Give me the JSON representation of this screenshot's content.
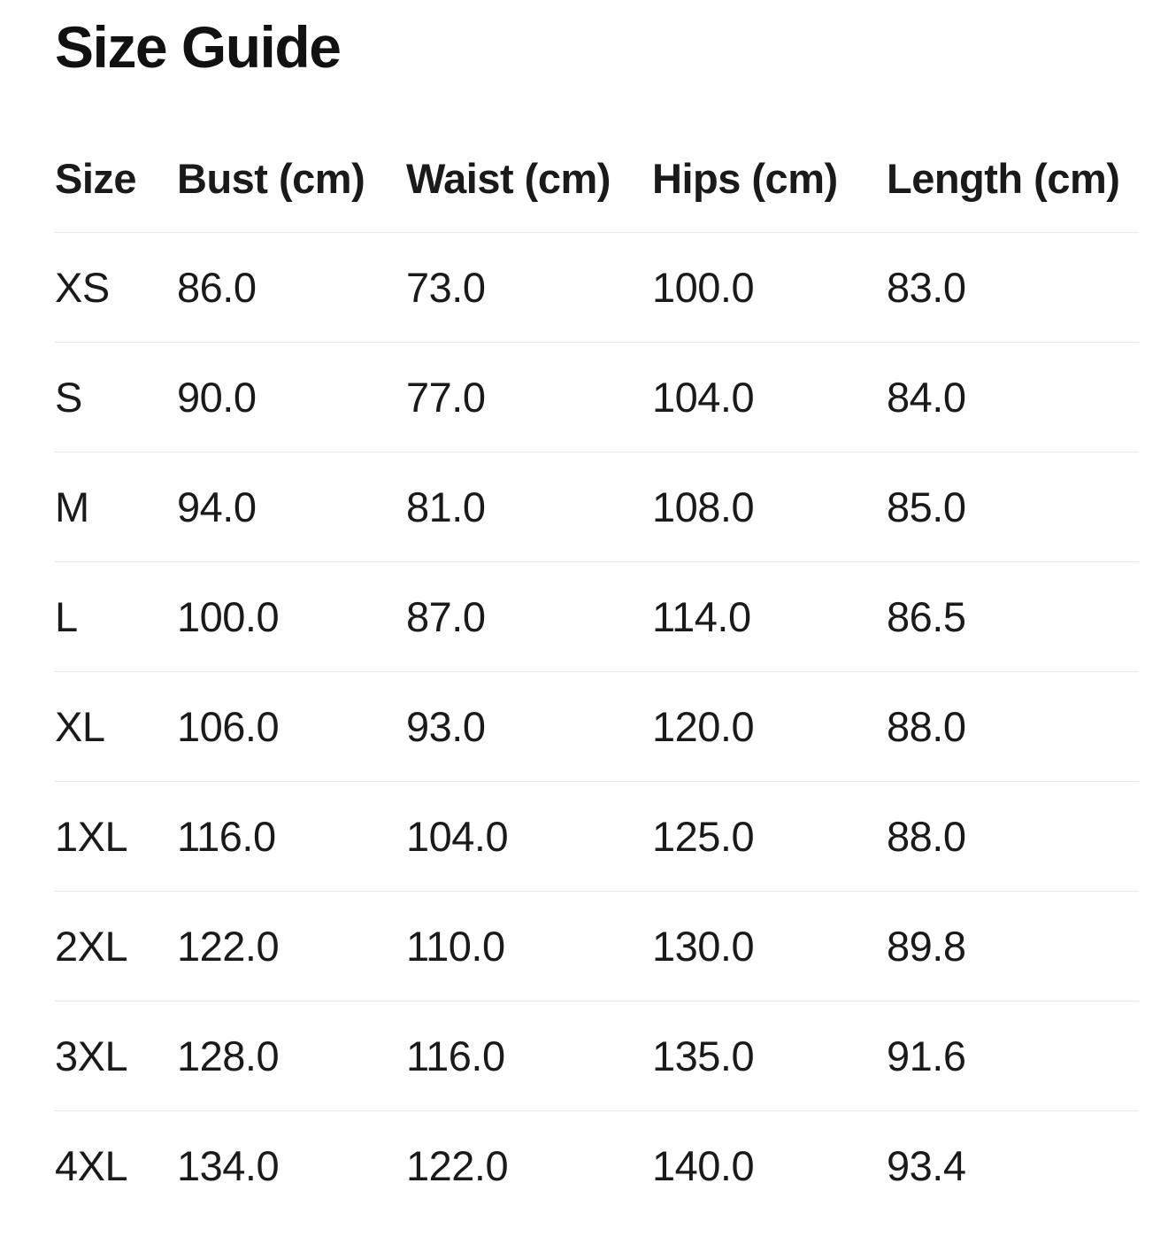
{
  "title": "Size Guide",
  "table": {
    "columns": [
      {
        "key": "size",
        "label": "Size"
      },
      {
        "key": "bust",
        "label": "Bust (cm)"
      },
      {
        "key": "waist",
        "label": "Waist (cm)"
      },
      {
        "key": "hips",
        "label": "Hips (cm)"
      },
      {
        "key": "length",
        "label": "Length (cm)"
      }
    ],
    "rows": [
      [
        "XS",
        "86.0",
        "73.0",
        "100.0",
        "83.0"
      ],
      [
        "S",
        "90.0",
        "77.0",
        "104.0",
        "84.0"
      ],
      [
        "M",
        "94.0",
        "81.0",
        "108.0",
        "85.0"
      ],
      [
        "L",
        "100.0",
        "87.0",
        "114.0",
        "86.5"
      ],
      [
        "XL",
        "106.0",
        "93.0",
        "120.0",
        "88.0"
      ],
      [
        "1XL",
        "116.0",
        "104.0",
        "125.0",
        "88.0"
      ],
      [
        "2XL",
        "122.0",
        "110.0",
        "130.0",
        "89.8"
      ],
      [
        "3XL",
        "128.0",
        "116.0",
        "135.0",
        "91.6"
      ],
      [
        "4XL",
        "134.0",
        "122.0",
        "140.0",
        "93.4"
      ]
    ]
  },
  "colors": {
    "background": "#ffffff",
    "text": "#1a1a1a",
    "divider": "#e7e7e7"
  }
}
